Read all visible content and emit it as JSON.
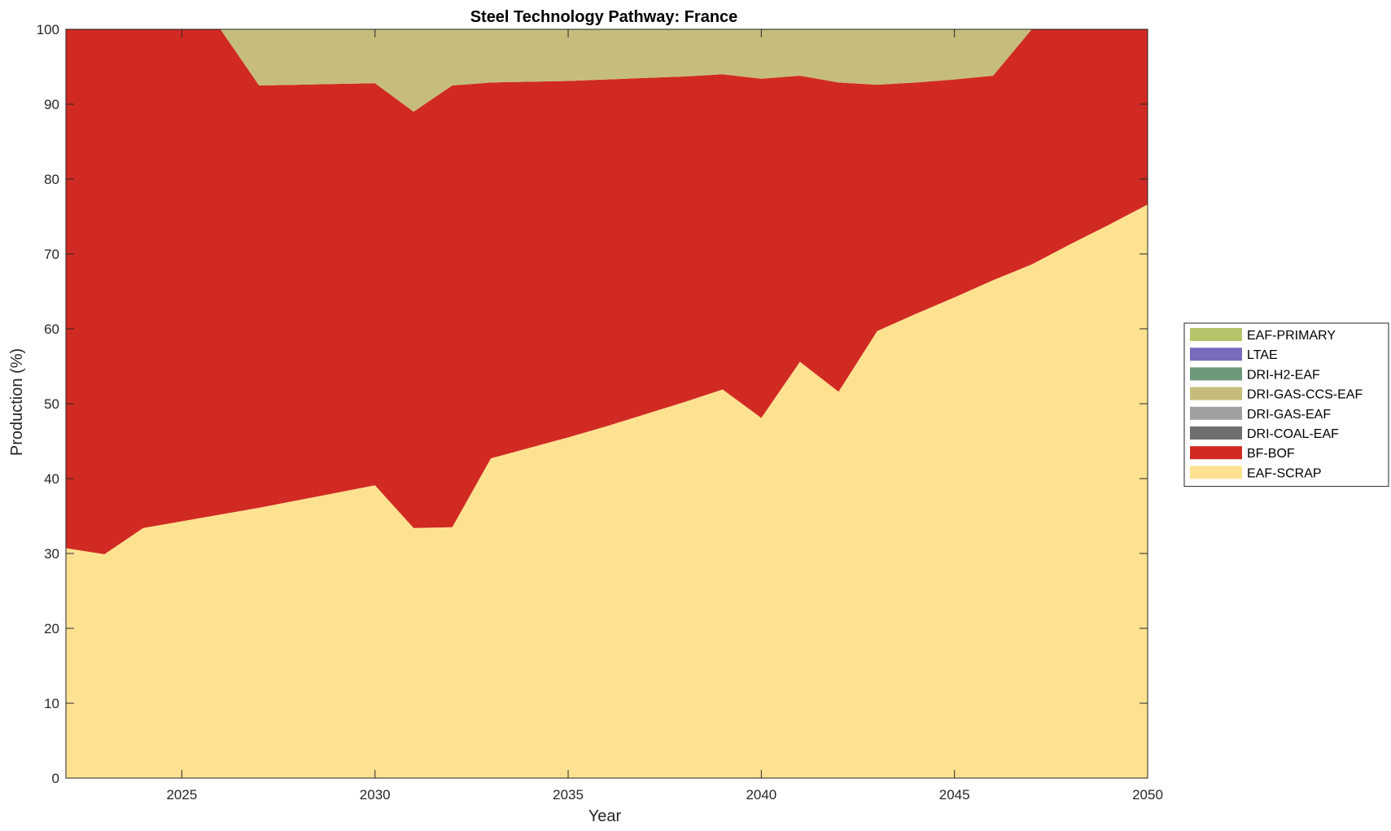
{
  "chart_data": {
    "type": "area",
    "stacked": true,
    "title": "Steel Technology Pathway: France",
    "xlabel": "Year",
    "ylabel": "Production (%)",
    "xlim": [
      2022,
      2050
    ],
    "ylim": [
      0,
      100
    ],
    "xticks": [
      2025,
      2030,
      2035,
      2040,
      2045,
      2050
    ],
    "yticks": [
      0,
      10,
      20,
      30,
      40,
      50,
      60,
      70,
      80,
      90,
      100
    ],
    "grid": false,
    "legend_position": "right",
    "x": [
      2022,
      2023,
      2024,
      2025,
      2026,
      2027,
      2028,
      2029,
      2030,
      2031,
      2032,
      2033,
      2034,
      2035,
      2036,
      2037,
      2038,
      2039,
      2040,
      2041,
      2042,
      2043,
      2044,
      2045,
      2046,
      2047,
      2048,
      2049,
      2050
    ],
    "series": [
      {
        "name": "EAF-SCRAP",
        "color": "#ffe291",
        "values": [
          30.7,
          29.9,
          33.4,
          34.3,
          35.2,
          36.1,
          37.1,
          38.1,
          39.1,
          33.4,
          33.5,
          42.7,
          44.1,
          45.5,
          47.0,
          48.6,
          50.2,
          51.9,
          48.1,
          55.6,
          51.6,
          59.7,
          62.0,
          64.2,
          66.5,
          68.6,
          71.3,
          73.9,
          76.6
        ]
      },
      {
        "name": "BF-BOF",
        "color": "#d12a23",
        "values": [
          69.3,
          70.1,
          66.6,
          65.7,
          64.8,
          56.4,
          55.5,
          54.6,
          53.7,
          55.6,
          59.0,
          50.2,
          48.9,
          47.6,
          46.3,
          44.9,
          43.5,
          42.1,
          45.3,
          38.2,
          41.3,
          32.9,
          30.9,
          29.1,
          27.3,
          31.4,
          28.7,
          26.1,
          23.4
        ]
      },
      {
        "name": "DRI-COAL-EAF",
        "color": "#6e6e6e",
        "values": [
          0,
          0,
          0,
          0,
          0,
          0,
          0,
          0,
          0,
          0,
          0,
          0,
          0,
          0,
          0,
          0,
          0,
          0,
          0,
          0,
          0,
          0,
          0,
          0,
          0,
          0,
          0,
          0,
          0
        ]
      },
      {
        "name": "DRI-GAS-EAF",
        "color": "#a0a0a0",
        "values": [
          0,
          0,
          0,
          0,
          0,
          0,
          0,
          0,
          0,
          0,
          0,
          0,
          0,
          0,
          0,
          0,
          0,
          0,
          0,
          0,
          0,
          0,
          0,
          0,
          0,
          0,
          0,
          0,
          0
        ]
      },
      {
        "name": "DRI-GAS-CCS-EAF",
        "color": "#c6bd7d",
        "values": [
          0,
          0,
          0,
          0,
          0,
          7.5,
          7.4,
          7.3,
          7.2,
          11.0,
          7.5,
          7.1,
          7.0,
          6.9,
          6.7,
          6.5,
          6.3,
          6.0,
          6.6,
          6.2,
          7.1,
          7.4,
          7.1,
          6.7,
          6.2,
          0,
          0,
          0,
          0
        ]
      },
      {
        "name": "DRI-H2-EAF",
        "color": "#6e987a",
        "values": [
          0,
          0,
          0,
          0,
          0,
          0,
          0,
          0,
          0,
          0,
          0,
          0,
          0,
          0,
          0,
          0,
          0,
          0,
          0,
          0,
          0,
          0,
          0,
          0,
          0,
          0,
          0,
          0,
          0
        ]
      },
      {
        "name": "LTAE",
        "color": "#776bbd",
        "values": [
          0,
          0,
          0,
          0,
          0,
          0,
          0,
          0,
          0,
          0,
          0,
          0,
          0,
          0,
          0,
          0,
          0,
          0,
          0,
          0,
          0,
          0,
          0,
          0,
          0,
          0,
          0,
          0,
          0
        ]
      },
      {
        "name": "EAF-PRIMARY",
        "color": "#b7c56a",
        "values": [
          0,
          0,
          0,
          0,
          0,
          0,
          0,
          0,
          0,
          0,
          0,
          0,
          0,
          0,
          0,
          0,
          0,
          0,
          0,
          0,
          0,
          0,
          0,
          0,
          0,
          0,
          0,
          0,
          0
        ]
      }
    ]
  }
}
